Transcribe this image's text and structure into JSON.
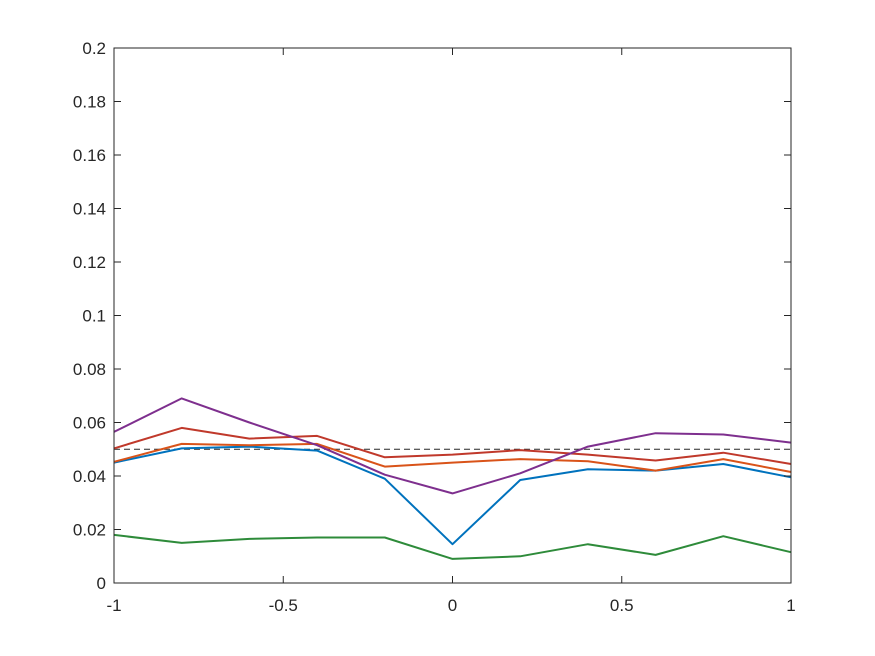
{
  "chart_data": {
    "type": "line",
    "title": "",
    "xlabel": "",
    "ylabel": "",
    "xlim": [
      -1,
      1
    ],
    "ylim": [
      0,
      0.2
    ],
    "grid": false,
    "legend": "none",
    "x_ticks": [
      "-1",
      "-0.5",
      "0",
      "0.5",
      "1"
    ],
    "y_ticks": [
      "0",
      "0.02",
      "0.04",
      "0.06",
      "0.08",
      "0.1",
      "0.12",
      "0.14",
      "0.16",
      "0.18",
      "0.2"
    ],
    "x_tick_values": [
      -1,
      -0.5,
      0,
      0.5,
      1
    ],
    "y_tick_values": [
      0,
      0.02,
      0.04,
      0.06,
      0.08,
      0.1,
      0.12,
      0.14,
      0.16,
      0.18,
      0.2
    ],
    "x": [
      -1,
      -0.8,
      -0.6,
      -0.4,
      -0.2,
      0,
      0.2,
      0.4,
      0.6,
      0.8,
      1
    ],
    "series": [
      {
        "color": "#0072BD",
        "values": [
          0.045,
          0.0503,
          0.051,
          0.0495,
          0.039,
          0.0145,
          0.0385,
          0.0425,
          0.042,
          0.0445,
          0.0395
        ]
      },
      {
        "color": "#D95319",
        "values": [
          0.0453,
          0.052,
          0.0515,
          0.052,
          0.0435,
          0.045,
          0.0463,
          0.0455,
          0.042,
          0.0463,
          0.0415
        ]
      },
      {
        "color": "#C0392B",
        "values": [
          0.0503,
          0.058,
          0.054,
          0.055,
          0.047,
          0.048,
          0.0497,
          0.048,
          0.0458,
          0.0487,
          0.0445
        ]
      },
      {
        "color": "#7E2F8E",
        "values": [
          0.0565,
          0.069,
          0.06,
          0.0515,
          0.0405,
          0.0335,
          0.041,
          0.051,
          0.056,
          0.0555,
          0.0525
        ]
      },
      {
        "color": "#2E8B3A",
        "values": [
          0.018,
          0.015,
          0.0165,
          0.017,
          0.017,
          0.009,
          0.01,
          0.0145,
          0.0105,
          0.0175,
          0.0115
        ]
      }
    ],
    "reference_line": {
      "y": 0.05,
      "style": "dashed",
      "color": "#262626"
    }
  }
}
